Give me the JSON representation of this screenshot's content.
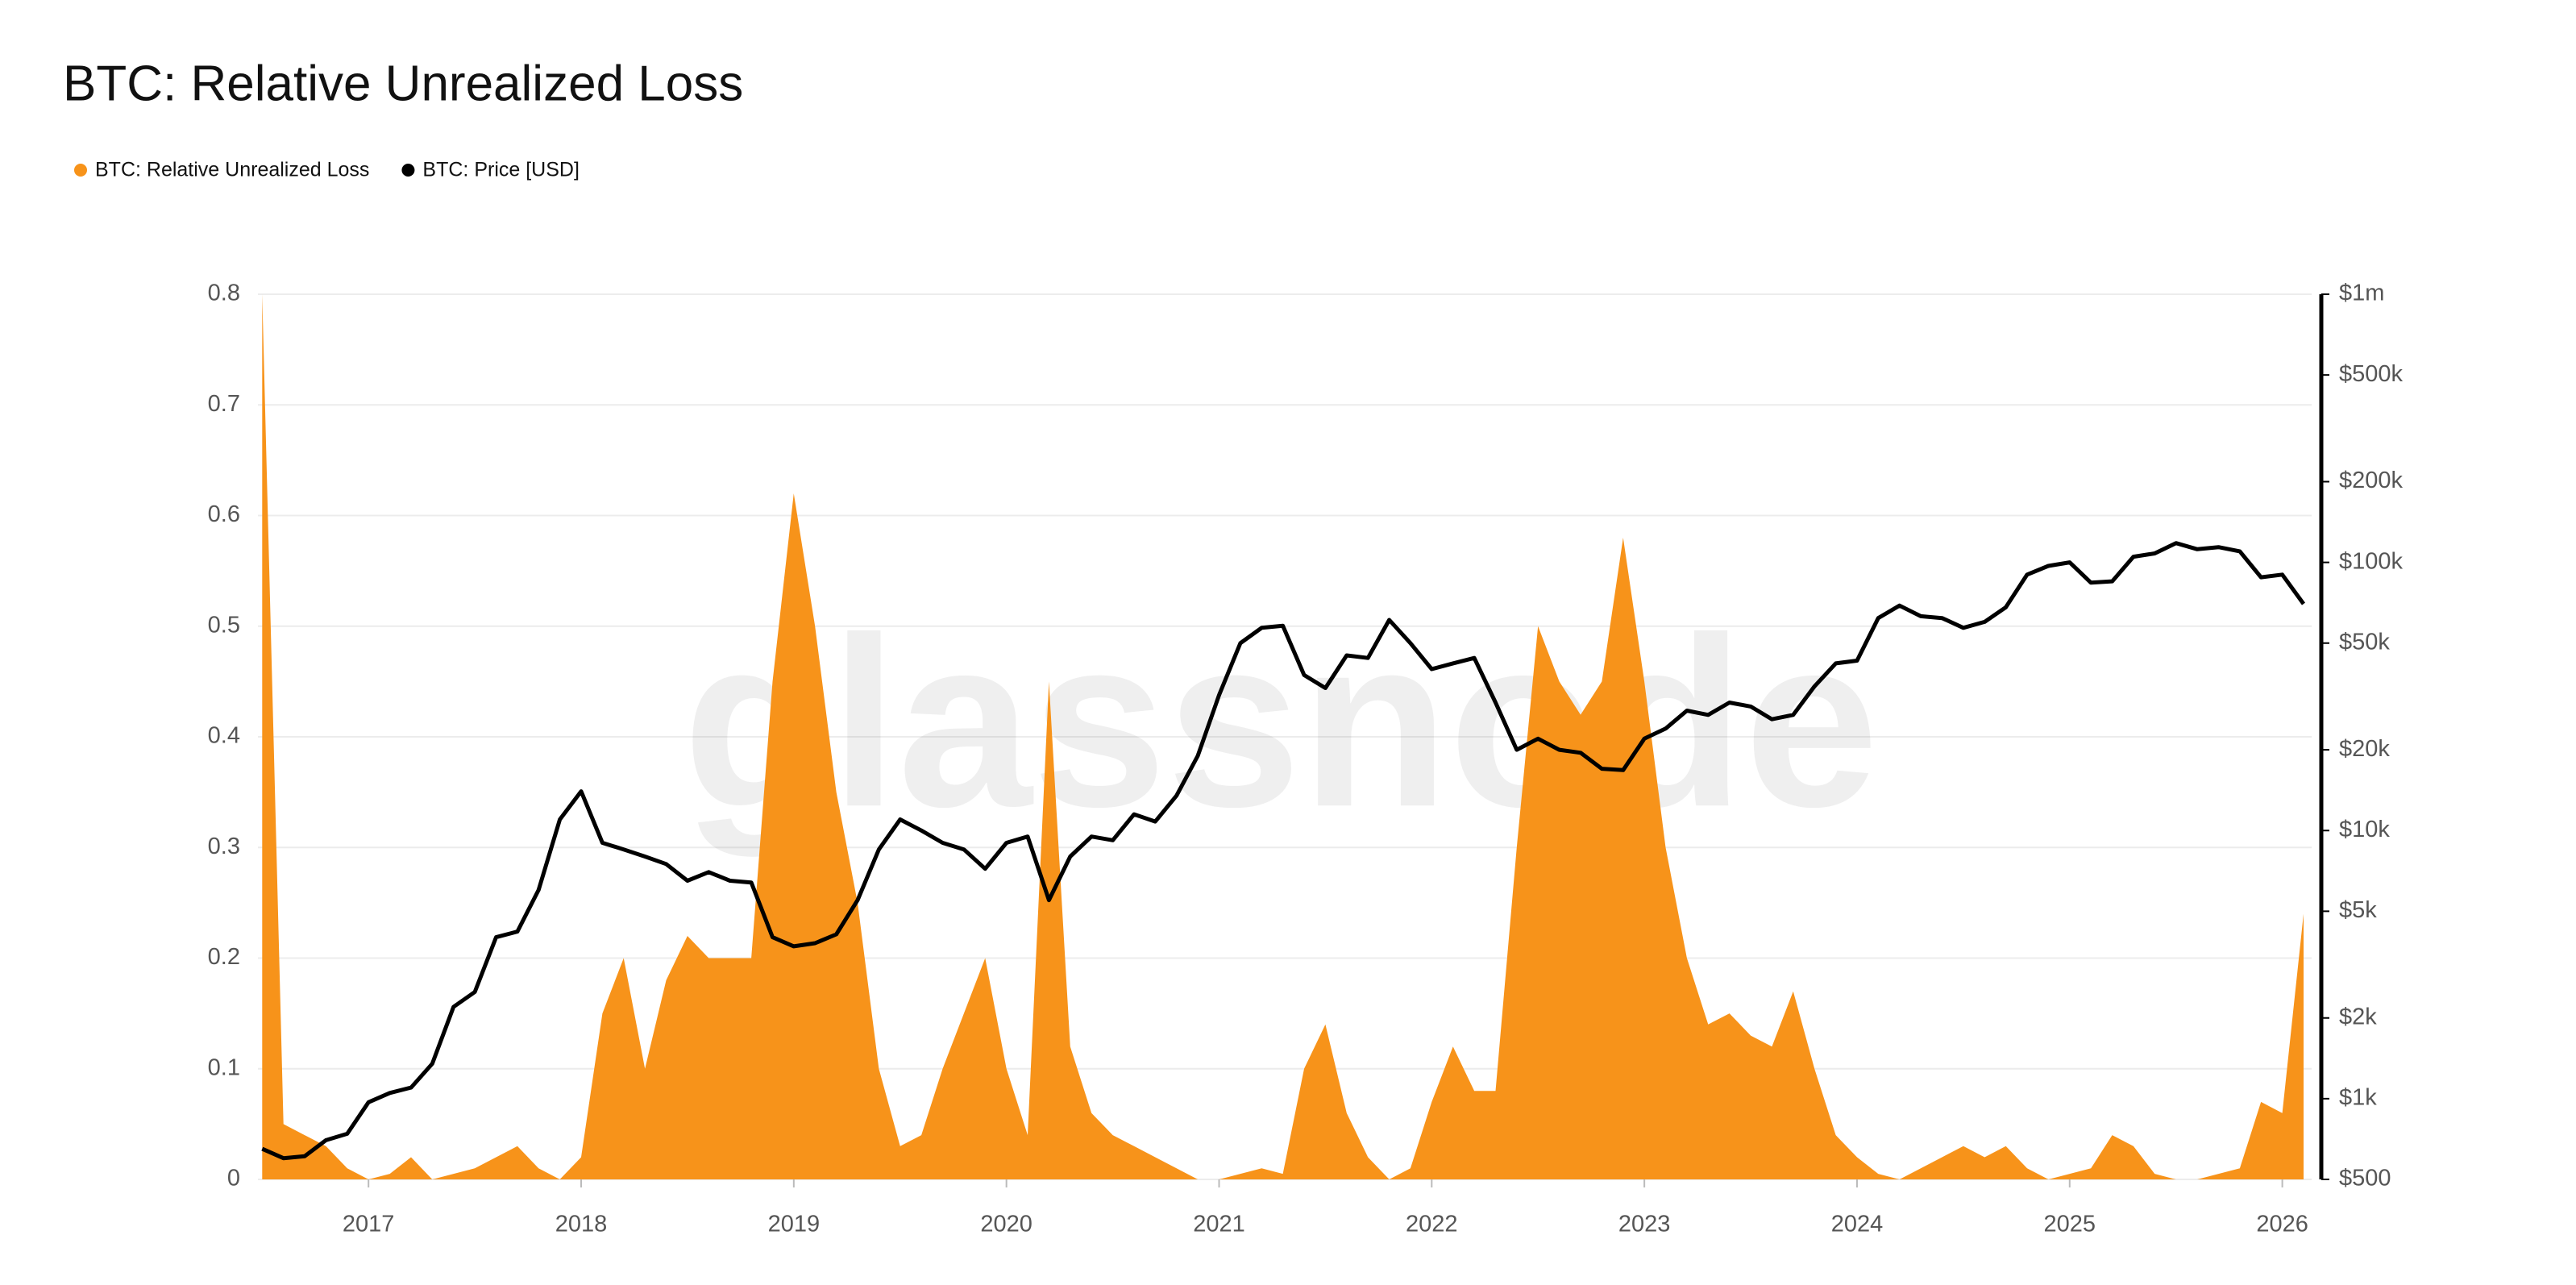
{
  "chart_data": {
    "type": "area",
    "title": "BTC: Relative Unrealized Loss",
    "watermark": "glassnode",
    "x": [
      2016.5,
      2016.6,
      2016.7,
      2016.8,
      2016.9,
      2017.0,
      2017.1,
      2017.2,
      2017.3,
      2017.4,
      2017.5,
      2017.6,
      2017.7,
      2017.8,
      2017.9,
      2018.0,
      2018.1,
      2018.2,
      2018.3,
      2018.4,
      2018.5,
      2018.6,
      2018.7,
      2018.8,
      2018.9,
      2019.0,
      2019.1,
      2019.2,
      2019.3,
      2019.4,
      2019.5,
      2019.6,
      2019.7,
      2019.8,
      2019.9,
      2020.0,
      2020.1,
      2020.2,
      2020.3,
      2020.4,
      2020.5,
      2020.6,
      2020.7,
      2020.8,
      2020.9,
      2021.0,
      2021.1,
      2021.2,
      2021.3,
      2021.4,
      2021.5,
      2021.6,
      2021.7,
      2021.8,
      2021.9,
      2022.0,
      2022.1,
      2022.2,
      2022.3,
      2022.4,
      2022.5,
      2022.6,
      2022.7,
      2022.8,
      2022.9,
      2023.0,
      2023.1,
      2023.2,
      2023.3,
      2023.4,
      2023.5,
      2023.6,
      2023.7,
      2023.8,
      2023.9,
      2024.0,
      2024.1,
      2024.2,
      2024.3,
      2024.4,
      2024.5,
      2024.6,
      2024.7,
      2024.8,
      2024.9,
      2025.0,
      2025.1,
      2025.2,
      2025.3,
      2025.4,
      2025.5,
      2025.6,
      2025.7,
      2025.8,
      2025.9,
      2026.0,
      2026.1
    ],
    "series": [
      {
        "name": "BTC: Relative Unrealized Loss",
        "color": "#f7931a",
        "type": "area",
        "values": [
          0.8,
          0.05,
          0.04,
          0.03,
          0.01,
          0,
          0.005,
          0.02,
          0,
          0.005,
          0.01,
          0.02,
          0.03,
          0.01,
          0,
          0.02,
          0.15,
          0.2,
          0.1,
          0.18,
          0.22,
          0.2,
          0.2,
          0.2,
          0.45,
          0.62,
          0.5,
          0.35,
          0.25,
          0.1,
          0.03,
          0.04,
          0.1,
          0.15,
          0.2,
          0.1,
          0.04,
          0.45,
          0.12,
          0.06,
          0.04,
          0.03,
          0.02,
          0.01,
          0,
          0,
          0.005,
          0.01,
          0.005,
          0.1,
          0.14,
          0.06,
          0.02,
          0,
          0.01,
          0.07,
          0.12,
          0.08,
          0.08,
          0.3,
          0.5,
          0.45,
          0.42,
          0.45,
          0.58,
          0.45,
          0.3,
          0.2,
          0.14,
          0.15,
          0.13,
          0.12,
          0.17,
          0.1,
          0.04,
          0.02,
          0.005,
          0,
          0.01,
          0.02,
          0.03,
          0.02,
          0.03,
          0.01,
          0,
          0.005,
          0.01,
          0.04,
          0.03,
          0.005,
          0,
          0,
          0.005,
          0.01,
          0.07,
          0.06,
          0.24
        ]
      },
      {
        "name": "BTC: Price [USD]",
        "color": "#000000",
        "type": "line",
        "axis": "y2",
        "values": [
          650,
          600,
          610,
          700,
          740,
          970,
          1050,
          1100,
          1350,
          2200,
          2500,
          4000,
          4200,
          6000,
          11000,
          14000,
          9000,
          8500,
          8000,
          7500,
          6500,
          7000,
          6500,
          6400,
          4000,
          3700,
          3800,
          4100,
          5500,
          8500,
          11000,
          10000,
          9000,
          8500,
          7200,
          9000,
          9500,
          5500,
          8000,
          9500,
          9200,
          11500,
          10800,
          13500,
          19000,
          32000,
          50000,
          57000,
          58000,
          38000,
          34000,
          45000,
          44000,
          61000,
          50000,
          40000,
          42000,
          44000,
          30000,
          20000,
          22000,
          20000,
          19500,
          17000,
          16800,
          22000,
          24000,
          28000,
          27000,
          30000,
          29000,
          26000,
          27000,
          34500,
          42000,
          43000,
          62000,
          69000,
          63000,
          62000,
          57000,
          60000,
          68000,
          90000,
          97000,
          100000,
          84000,
          85000,
          105000,
          108000,
          118000,
          112000,
          114000,
          110000,
          88000,
          90000,
          70000
        ]
      }
    ],
    "xlim": [
      2016.48,
      2026.1
    ],
    "xticks": [
      2017,
      2018,
      2019,
      2020,
      2021,
      2022,
      2023,
      2024,
      2025,
      2026
    ],
    "ylim": [
      0,
      0.8
    ],
    "yticks": [
      0,
      0.1,
      0.2,
      0.3,
      0.4,
      0.5,
      0.6,
      0.7,
      0.8
    ],
    "y2lim": [
      500,
      1000000
    ],
    "y2scale": "log",
    "y2ticks": [
      {
        "value": 500,
        "label": "$500"
      },
      {
        "value": 1000,
        "label": "$1k"
      },
      {
        "value": 2000,
        "label": "$2k"
      },
      {
        "value": 5000,
        "label": "$5k"
      },
      {
        "value": 10000,
        "label": "$10k"
      },
      {
        "value": 20000,
        "label": "$20k"
      },
      {
        "value": 50000,
        "label": "$50k"
      },
      {
        "value": 100000,
        "label": "$100k"
      },
      {
        "value": 200000,
        "label": "$200k"
      },
      {
        "value": 500000,
        "label": "$500k"
      },
      {
        "value": 1000000,
        "label": "$1m"
      }
    ],
    "grid": true,
    "legend": "top-left"
  }
}
